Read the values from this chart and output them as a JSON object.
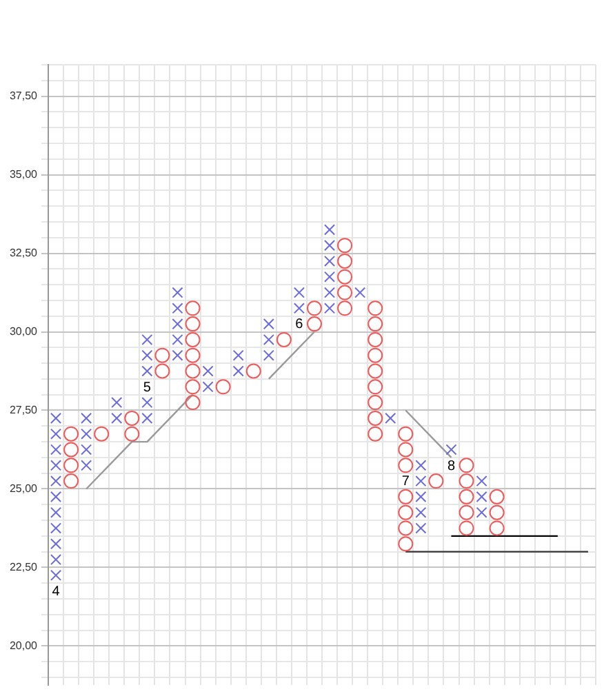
{
  "chart_data": {
    "type": "scatter",
    "categories": [
      null,
      null,
      null,
      null,
      null,
      null,
      null,
      null,
      null,
      null,
      null,
      null,
      null,
      null,
      null,
      null,
      null,
      null,
      null,
      null,
      null,
      null,
      null,
      null,
      null,
      null,
      null,
      null,
      null,
      null,
      null,
      null,
      null,
      null,
      null,
      null
    ],
    "ylim": [
      18.75,
      38.5
    ],
    "yticks": [
      {
        "value": 19,
        "label": null
      },
      {
        "value": 19.5,
        "label": null
      },
      {
        "value": 20,
        "label": "20,00"
      },
      {
        "value": 20.5,
        "label": null
      },
      {
        "value": 21,
        "label": null
      },
      {
        "value": 21.5,
        "label": null
      },
      {
        "value": 22,
        "label": null
      },
      {
        "value": 22.5,
        "label": "22,50"
      },
      {
        "value": 23,
        "label": null
      },
      {
        "value": 23.5,
        "label": null
      },
      {
        "value": 24,
        "label": null
      },
      {
        "value": 24.5,
        "label": null
      },
      {
        "value": 25,
        "label": "25,00"
      },
      {
        "value": 25.5,
        "label": null
      },
      {
        "value": 26,
        "label": null
      },
      {
        "value": 26.5,
        "label": null
      },
      {
        "value": 27,
        "label": null
      },
      {
        "value": 27.5,
        "label": "27,50"
      },
      {
        "value": 28,
        "label": null
      },
      {
        "value": 28.5,
        "label": null
      },
      {
        "value": 29,
        "label": null
      },
      {
        "value": 29.5,
        "label": null
      },
      {
        "value": 30,
        "label": "30,00"
      },
      {
        "value": 30.5,
        "label": null
      },
      {
        "value": 31,
        "label": null
      },
      {
        "value": 31.5,
        "label": null
      },
      {
        "value": 32,
        "label": null
      },
      {
        "value": 32.5,
        "label": "32,50"
      },
      {
        "value": 33,
        "label": null
      },
      {
        "value": 33.5,
        "label": null
      },
      {
        "value": 34,
        "label": null
      },
      {
        "value": 34.5,
        "label": null
      },
      {
        "value": 35,
        "label": "35,00"
      },
      {
        "value": 35.5,
        "label": null
      },
      {
        "value": 36,
        "label": null
      },
      {
        "value": 36.5,
        "label": null
      },
      {
        "value": 37,
        "label": null
      },
      {
        "value": 37.5,
        "label": "37,50"
      },
      {
        "value": 38,
        "label": null
      },
      {
        "value": 38.5,
        "label": null
      }
    ],
    "tick_labels": "y",
    "grid": true,
    "series": [
      {
        "marker": "cross",
        "color": "#6a6ae0",
        "values": [
          22.25,
          null,
          25.75,
          null,
          27.25,
          null,
          27.25,
          null,
          29.25,
          null,
          28.25,
          null,
          28.75,
          null,
          29.25,
          null,
          30.75,
          null,
          30.75,
          null,
          31.25,
          null,
          27.25,
          null,
          23.75,
          null,
          26.25,
          null,
          24.25,
          null,
          null,
          null,
          null,
          null,
          null,
          null
        ]
      },
      {
        "marker": "cross",
        "color": "#6a6ae0",
        "values": [
          22.75,
          null,
          26.25,
          null,
          27.75,
          null,
          27.75,
          null,
          29.75,
          null,
          28.75,
          null,
          29.25,
          null,
          29.75,
          null,
          31.25,
          null,
          31.25,
          null,
          null,
          null,
          null,
          null,
          24.25,
          null,
          null,
          null,
          24.75,
          null,
          null,
          null,
          null,
          null,
          null,
          null
        ]
      },
      {
        "marker": "cross",
        "color": "#6a6ae0",
        "values": [
          23.25,
          null,
          26.75,
          null,
          null,
          null,
          28.75,
          null,
          30.25,
          null,
          null,
          null,
          null,
          null,
          30.25,
          null,
          null,
          null,
          31.75,
          null,
          null,
          null,
          null,
          null,
          24.75,
          null,
          null,
          null,
          25.25,
          null,
          null,
          null,
          null,
          null,
          null,
          null
        ]
      },
      {
        "marker": "cross",
        "color": "#6a6ae0",
        "values": [
          23.75,
          null,
          27.25,
          null,
          null,
          null,
          29.25,
          null,
          30.75,
          null,
          null,
          null,
          null,
          null,
          null,
          null,
          null,
          null,
          32.25,
          null,
          null,
          null,
          null,
          null,
          25.25,
          null,
          null,
          null,
          null,
          null,
          null,
          null,
          null,
          null,
          null,
          null
        ]
      },
      {
        "marker": "cross",
        "color": "#6a6ae0",
        "values": [
          24.25,
          null,
          null,
          null,
          null,
          null,
          29.75,
          null,
          31.25,
          null,
          null,
          null,
          null,
          null,
          null,
          null,
          null,
          null,
          32.75,
          null,
          null,
          null,
          null,
          null,
          25.75,
          null,
          null,
          null,
          null,
          null,
          null,
          null,
          null,
          null,
          null,
          null
        ]
      },
      {
        "marker": "cross",
        "color": "#6a6ae0",
        "values": [
          24.75,
          null,
          null,
          null,
          null,
          null,
          null,
          null,
          null,
          null,
          null,
          null,
          null,
          null,
          null,
          null,
          null,
          null,
          33.25,
          null,
          null,
          null,
          null,
          null,
          null,
          null,
          null,
          null,
          null,
          null,
          null,
          null,
          null,
          null,
          null,
          null
        ]
      },
      {
        "marker": "cross",
        "color": "#6a6ae0",
        "values": [
          25.25,
          null,
          null,
          null,
          null,
          null,
          null,
          null,
          null,
          null,
          null,
          null,
          null,
          null,
          null,
          null,
          null,
          null,
          null,
          null,
          null,
          null,
          null,
          null,
          null,
          null,
          null,
          null,
          null,
          null,
          null,
          null,
          null,
          null,
          null,
          null
        ]
      },
      {
        "marker": "cross",
        "color": "#6a6ae0",
        "values": [
          25.75,
          null,
          null,
          null,
          null,
          null,
          null,
          null,
          null,
          null,
          null,
          null,
          null,
          null,
          null,
          null,
          null,
          null,
          null,
          null,
          null,
          null,
          null,
          null,
          null,
          null,
          null,
          null,
          null,
          null,
          null,
          null,
          null,
          null,
          null,
          null
        ]
      },
      {
        "marker": "cross",
        "color": "#6a6ae0",
        "values": [
          26.25,
          null,
          null,
          null,
          null,
          null,
          null,
          null,
          null,
          null,
          null,
          null,
          null,
          null,
          null,
          null,
          null,
          null,
          null,
          null,
          null,
          null,
          null,
          null,
          null,
          null,
          null,
          null,
          null,
          null,
          null,
          null,
          null,
          null,
          null,
          null
        ]
      },
      {
        "marker": "cross",
        "color": "#6a6ae0",
        "values": [
          26.75,
          null,
          null,
          null,
          null,
          null,
          null,
          null,
          null,
          null,
          null,
          null,
          null,
          null,
          null,
          null,
          null,
          null,
          null,
          null,
          null,
          null,
          null,
          null,
          null,
          null,
          null,
          null,
          null,
          null,
          null,
          null,
          null,
          null,
          null,
          null
        ]
      },
      {
        "marker": "cross",
        "color": "#6a6ae0",
        "values": [
          27.25,
          null,
          null,
          null,
          null,
          null,
          null,
          null,
          null,
          null,
          null,
          null,
          null,
          null,
          null,
          null,
          null,
          null,
          null,
          null,
          null,
          null,
          null,
          null,
          null,
          null,
          null,
          null,
          null,
          null,
          null,
          null,
          null,
          null,
          null,
          null
        ]
      },
      {
        "marker": "circle",
        "color": "#ee5a5a",
        "values": [
          null,
          25.25,
          null,
          26.75,
          null,
          26.75,
          null,
          28.75,
          null,
          27.75,
          null,
          28.25,
          null,
          28.75,
          null,
          29.75,
          null,
          30.25,
          null,
          30.75,
          null,
          26.75,
          null,
          23.25,
          null,
          25.25,
          null,
          23.75,
          null,
          23.75,
          null,
          null,
          null,
          null,
          null,
          null
        ]
      },
      {
        "marker": "circle",
        "color": "#ee5a5a",
        "values": [
          null,
          25.75,
          null,
          null,
          null,
          27.25,
          null,
          29.25,
          null,
          28.25,
          null,
          null,
          null,
          null,
          null,
          null,
          null,
          30.75,
          null,
          31.25,
          null,
          27.25,
          null,
          23.75,
          null,
          null,
          null,
          24.25,
          null,
          24.25,
          null,
          null,
          null,
          null,
          null,
          null
        ]
      },
      {
        "marker": "circle",
        "color": "#ee5a5a",
        "values": [
          null,
          26.25,
          null,
          null,
          null,
          null,
          null,
          null,
          null,
          28.75,
          null,
          null,
          null,
          null,
          null,
          null,
          null,
          null,
          null,
          31.75,
          null,
          27.75,
          null,
          24.25,
          null,
          null,
          null,
          24.75,
          null,
          24.75,
          null,
          null,
          null,
          null,
          null,
          null
        ]
      },
      {
        "marker": "circle",
        "color": "#ee5a5a",
        "values": [
          null,
          26.75,
          null,
          null,
          null,
          null,
          null,
          null,
          null,
          29.25,
          null,
          null,
          null,
          null,
          null,
          null,
          null,
          null,
          null,
          32.25,
          null,
          28.25,
          null,
          24.75,
          null,
          null,
          null,
          25.25,
          null,
          null,
          null,
          null,
          null,
          null,
          null,
          null
        ]
      },
      {
        "marker": "circle",
        "color": "#ee5a5a",
        "values": [
          null,
          null,
          null,
          null,
          null,
          null,
          null,
          null,
          null,
          29.75,
          null,
          null,
          null,
          null,
          null,
          null,
          null,
          null,
          null,
          32.75,
          null,
          28.75,
          null,
          25.75,
          null,
          null,
          null,
          25.75,
          null,
          null,
          null,
          null,
          null,
          null,
          null,
          null
        ]
      },
      {
        "marker": "circle",
        "color": "#ee5a5a",
        "values": [
          null,
          null,
          null,
          null,
          null,
          null,
          null,
          null,
          null,
          30.25,
          null,
          null,
          null,
          null,
          null,
          null,
          null,
          null,
          null,
          null,
          null,
          29.25,
          null,
          26.25,
          null,
          null,
          null,
          null,
          null,
          null,
          null,
          null,
          null,
          null,
          null,
          null
        ]
      },
      {
        "marker": "circle",
        "color": "#ee5a5a",
        "values": [
          null,
          null,
          null,
          null,
          null,
          null,
          null,
          null,
          null,
          30.75,
          null,
          null,
          null,
          null,
          null,
          null,
          null,
          null,
          null,
          null,
          null,
          29.75,
          null,
          26.75,
          null,
          null,
          null,
          null,
          null,
          null,
          null,
          null,
          null,
          null,
          null,
          null
        ]
      },
      {
        "marker": "circle",
        "color": "#ee5a5a",
        "values": [
          null,
          null,
          null,
          null,
          null,
          null,
          null,
          null,
          null,
          null,
          null,
          null,
          null,
          null,
          null,
          null,
          null,
          null,
          null,
          null,
          null,
          30.25,
          null,
          null,
          null,
          null,
          null,
          null,
          null,
          null,
          null,
          null,
          null,
          null,
          null,
          null
        ]
      },
      {
        "marker": "circle",
        "color": "#ee5a5a",
        "values": [
          null,
          null,
          null,
          null,
          null,
          null,
          null,
          null,
          null,
          null,
          null,
          null,
          null,
          null,
          null,
          null,
          null,
          null,
          null,
          null,
          null,
          30.75,
          null,
          null,
          null,
          null,
          null,
          null,
          null,
          null,
          null,
          null,
          null,
          null,
          null,
          null
        ]
      },
      {
        "type": "line",
        "marker": "none",
        "color": "#999999",
        "values": [
          null,
          null,
          25,
          null,
          null,
          26.5,
          26.5,
          null,
          null,
          28,
          null,
          null,
          null,
          null,
          null,
          null,
          null,
          null,
          null,
          null,
          null,
          null,
          null,
          null,
          null,
          null,
          null,
          null,
          null,
          null,
          null,
          null,
          null,
          null,
          null,
          null
        ]
      },
      {
        "type": "line",
        "marker": "none",
        "color": "#999999",
        "values": [
          null,
          null,
          null,
          null,
          null,
          null,
          null,
          null,
          null,
          null,
          null,
          null,
          null,
          null,
          28.5,
          null,
          null,
          30,
          null,
          null,
          null,
          null,
          null,
          null,
          null,
          null,
          null,
          null,
          null,
          null,
          null,
          null,
          null,
          null,
          null,
          null
        ]
      },
      {
        "type": "line",
        "marker": "none",
        "color": "#999999",
        "values": [
          null,
          null,
          null,
          null,
          null,
          null,
          null,
          null,
          null,
          null,
          null,
          null,
          null,
          null,
          null,
          null,
          null,
          null,
          null,
          null,
          null,
          null,
          null,
          27.5,
          null,
          null,
          26,
          null,
          null,
          null,
          null,
          null,
          null,
          null,
          null,
          null
        ]
      },
      {
        "type": "line",
        "marker": "none",
        "color": "#000000",
        "values": [
          null,
          null,
          null,
          null,
          null,
          null,
          null,
          null,
          null,
          null,
          null,
          null,
          null,
          null,
          null,
          null,
          null,
          null,
          null,
          null,
          null,
          null,
          null,
          null,
          null,
          null,
          23.5,
          23.5,
          23.5,
          23.5,
          23.5,
          23.5,
          23.5,
          23.5,
          null,
          null
        ]
      },
      {
        "type": "line",
        "marker": "none",
        "color": "#333333",
        "values": [
          null,
          null,
          null,
          null,
          null,
          null,
          null,
          null,
          null,
          null,
          null,
          null,
          null,
          null,
          null,
          null,
          null,
          null,
          null,
          null,
          null,
          null,
          null,
          23,
          23,
          23,
          23,
          23,
          23,
          23,
          23,
          23,
          23,
          23,
          23,
          23
        ]
      }
    ],
    "annotations": [
      "4",
      "5",
      "6",
      "7",
      "8"
    ]
  }
}
